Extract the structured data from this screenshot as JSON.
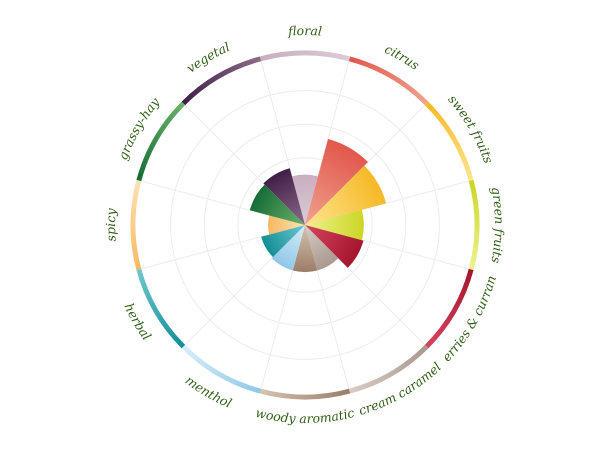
{
  "chart_data": {
    "type": "polar-area",
    "title": "",
    "grid": true,
    "rmax": 10,
    "rings": [
      2,
      4,
      6,
      8
    ],
    "categories": [
      {
        "label": "floral",
        "value": 3,
        "colors": [
          "#c9aebf",
          "#d9ccd6"
        ]
      },
      {
        "label": "citrus",
        "value": 5.3,
        "colors": [
          "#e1574b",
          "#f0a28f"
        ]
      },
      {
        "label": "sweet fruits",
        "value": 5,
        "colors": [
          "#f6b826",
          "#fde58f"
        ]
      },
      {
        "label": "green fruits",
        "value": 3.5,
        "colors": [
          "#cbd625",
          "#eef28d"
        ]
      },
      {
        "label": "berries & currant",
        "value": 3.6,
        "colors": [
          "#a4152d",
          "#d6455f"
        ]
      },
      {
        "label": "cream caramel",
        "value": 2.8,
        "colors": [
          "#a9988e",
          "#d7cdc6"
        ]
      },
      {
        "label": "woody aromatic",
        "value": 2.8,
        "colors": [
          "#9b7d68",
          "#d6c2b0"
        ]
      },
      {
        "label": "menthol",
        "value": 2.8,
        "colors": [
          "#8fc7e6",
          "#d9eef8"
        ]
      },
      {
        "label": "herbal",
        "value": 2.7,
        "colors": [
          "#128e96",
          "#6fc7cf"
        ]
      },
      {
        "label": "spicy",
        "value": 2.2,
        "colors": [
          "#f7b961",
          "#fde1b5"
        ]
      },
      {
        "label": "grassy-hay",
        "value": 3.4,
        "colors": [
          "#156b36",
          "#6db36a"
        ]
      },
      {
        "label": "vegetal",
        "value": 3.5,
        "colors": [
          "#3f1f47",
          "#8c6a89"
        ]
      }
    ]
  }
}
